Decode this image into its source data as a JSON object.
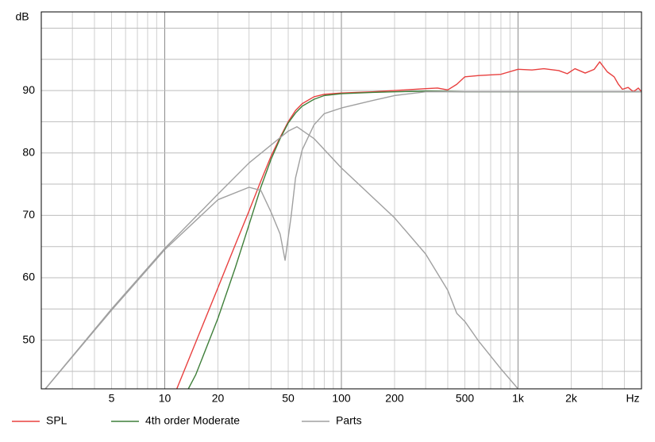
{
  "chart_data": {
    "type": "line",
    "x_scale": "log",
    "y_label": "dB",
    "x_label": "Hz",
    "xlim": [
      2,
      5000
    ],
    "ylim": [
      42.2,
      102.6
    ],
    "xticks": [
      5,
      10,
      20,
      50,
      100,
      200,
      500,
      {
        "value": 1000,
        "label": "1k"
      },
      {
        "value": 2000,
        "label": "2k"
      }
    ],
    "yticks": [
      50,
      60,
      70,
      80,
      90
    ],
    "xgrid": [
      2,
      3,
      4,
      5,
      6,
      7,
      8,
      9,
      10,
      20,
      30,
      40,
      50,
      60,
      70,
      80,
      90,
      100,
      200,
      300,
      400,
      500,
      600,
      700,
      800,
      900,
      1000,
      2000,
      3000,
      4000,
      5000
    ],
    "ygrid": [
      45,
      50,
      55,
      60,
      65,
      70,
      75,
      80,
      85,
      90,
      95,
      100
    ],
    "series": [
      {
        "name": "SPL",
        "color": "#e8403f",
        "curves": [
          {
            "x": [
              11.7,
              15,
              20,
              25,
              30,
              35,
              40,
              45,
              50,
              55,
              60,
              70,
              80,
              100,
              150,
              200,
              300,
              350,
              400,
              450,
              500,
              600,
              800,
              1000,
              1200,
              1400,
              1700,
              1900,
              2100,
              2400,
              2700,
              2900,
              3200,
              3500,
              3700,
              3900,
              4200,
              4500,
              4800,
              5000
            ],
            "y": [
              42.2,
              49.7,
              58.4,
              65.2,
              70.7,
              75.5,
              79.5,
              82.5,
              85,
              86.8,
              87.9,
              89,
              89.4,
              89.6,
              89.8,
              90,
              90.3,
              90.4,
              90.1,
              91,
              92.2,
              92.4,
              92.6,
              93.4,
              93.3,
              93.5,
              93.2,
              92.7,
              93.5,
              92.8,
              93.4,
              94.6,
              93,
              92.2,
              91,
              90.2,
              90.5,
              89.8,
              90.4,
              89.8
            ]
          }
        ]
      },
      {
        "name": "4th order Moderate",
        "color": "#3f7f3a",
        "curves": [
          {
            "x": [
              13.6,
              15,
              20,
              25,
              30,
              35,
              40,
              45,
              50,
              55,
              60,
              70,
              80,
              100,
              150,
              200,
              300,
              500,
              1000,
              5000
            ],
            "y": [
              42.2,
              44.5,
              53.5,
              61.5,
              68.5,
              74.5,
              79,
              82.3,
              84.8,
              86.4,
              87.5,
              88.6,
              89.2,
              89.5,
              89.7,
              89.8,
              89.9,
              89.8,
              89.8,
              89.8
            ]
          }
        ]
      },
      {
        "name": "Parts",
        "color": "#a0a0a0",
        "curves": [
          {
            "x": [
              2.11,
              5,
              10,
              20,
              30,
              50,
              56,
              70,
              100,
              200,
              300,
              400,
              450,
              500,
              600,
              800,
              1000
            ],
            "y": [
              42.2,
              55,
              64.7,
              73.4,
              78.4,
              83.5,
              84.2,
              82.3,
              77.6,
              69.6,
              63.8,
              58,
              54.3,
              53,
              49.8,
              45.4,
              42.2
            ]
          },
          {
            "x": [
              2.11,
              5,
              10,
              20,
              30,
              35,
              40,
              45,
              48,
              52,
              55,
              60,
              70,
              80,
              100,
              150,
              200,
              300,
              500,
              5000
            ],
            "y": [
              42.2,
              54.8,
              64.5,
              72.5,
              74.5,
              74,
              70.5,
              67,
              62.8,
              70,
              76,
              80.5,
              84.5,
              86.3,
              87.2,
              88.4,
              89.2,
              89.8,
              89.8,
              89.8
            ]
          }
        ]
      }
    ]
  }
}
